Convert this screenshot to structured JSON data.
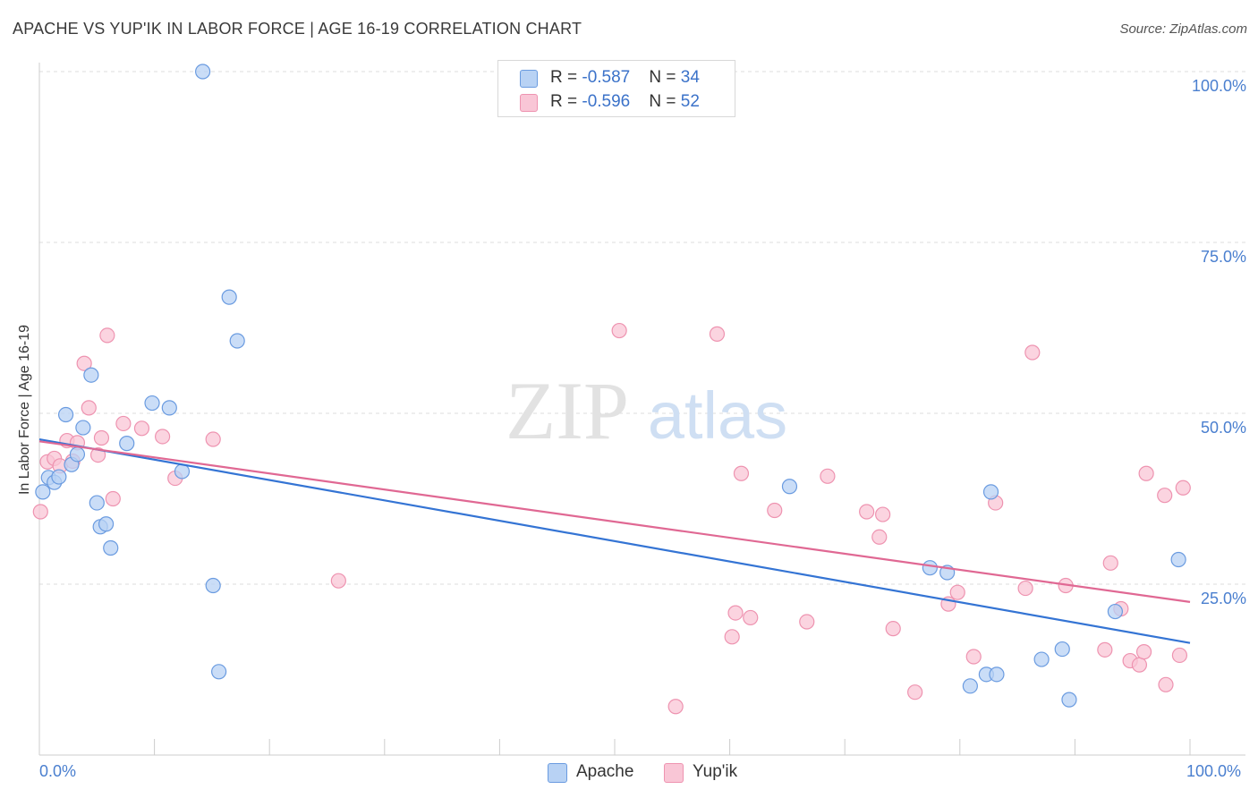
{
  "header": {
    "title": "APACHE VS YUP'IK IN LABOR FORCE | AGE 16-19 CORRELATION CHART",
    "source": "Source: ZipAtlas.com"
  },
  "watermark": {
    "zip": "ZIP",
    "atlas": "atlas"
  },
  "legend": {
    "apache": {
      "r_label": "R = ",
      "r_value": "-0.587",
      "n_label": "N = ",
      "n_value": "34"
    },
    "yupik": {
      "r_label": "R = ",
      "r_value": "-0.596",
      "n_label": "N = ",
      "n_value": "52"
    }
  },
  "colors": {
    "apache_fill": "#b8d2f4",
    "apache_stroke": "#6a9be0",
    "apache_line": "#3474d4",
    "yupik_fill": "#f9c6d6",
    "yupik_stroke": "#ee93b0",
    "yupik_line": "#e06893",
    "tick_text": "#4a7fcf",
    "grid": "#dddddd"
  },
  "chart_data": {
    "type": "scatter",
    "title": "APACHE VS YUP'IK IN LABOR FORCE | AGE 16-19 CORRELATION CHART",
    "xlabel": "",
    "ylabel": "In Labor Force | Age 16-19",
    "xlim": [
      0,
      100
    ],
    "ylim": [
      0,
      100
    ],
    "x_tick_labels": [
      "0.0%",
      "100.0%"
    ],
    "y_tick_labels": [
      "100.0%",
      "75.0%",
      "50.0%",
      "25.0%"
    ],
    "y_ticks": [
      100,
      75,
      50,
      25
    ],
    "grid": true,
    "legend_position": "top-center",
    "series": [
      {
        "name": "Apache",
        "r": -0.587,
        "n": 34,
        "trend": {
          "x": [
            0,
            100
          ],
          "y": [
            46.2,
            16.4
          ]
        },
        "points": [
          [
            0.3,
            38.5
          ],
          [
            0.8,
            40.6
          ],
          [
            1.3,
            39.9
          ],
          [
            1.7,
            40.7
          ],
          [
            2.3,
            49.8
          ],
          [
            2.8,
            42.5
          ],
          [
            3.3,
            44.0
          ],
          [
            3.8,
            47.9
          ],
          [
            4.5,
            55.6
          ],
          [
            5.0,
            36.9
          ],
          [
            5.3,
            33.4
          ],
          [
            5.8,
            33.8
          ],
          [
            6.2,
            30.3
          ],
          [
            7.6,
            45.6
          ],
          [
            9.8,
            51.5
          ],
          [
            11.3,
            50.8
          ],
          [
            12.4,
            41.5
          ],
          [
            14.2,
            100.0
          ],
          [
            15.1,
            24.8
          ],
          [
            15.6,
            12.2
          ],
          [
            16.5,
            67.0
          ],
          [
            17.2,
            60.6
          ],
          [
            65.2,
            39.3
          ],
          [
            77.4,
            27.4
          ],
          [
            78.9,
            26.7
          ],
          [
            80.9,
            10.1
          ],
          [
            82.3,
            11.8
          ],
          [
            83.2,
            11.8
          ],
          [
            82.7,
            38.5
          ],
          [
            87.1,
            14.0
          ],
          [
            88.9,
            15.5
          ],
          [
            89.5,
            8.1
          ],
          [
            93.5,
            21.0
          ],
          [
            99.0,
            28.6
          ]
        ]
      },
      {
        "name": "Yup'ik",
        "r": -0.596,
        "n": 52,
        "trend": {
          "x": [
            0,
            100
          ],
          "y": [
            45.9,
            22.4
          ]
        },
        "points": [
          [
            0.1,
            35.6
          ],
          [
            0.7,
            42.9
          ],
          [
            1.3,
            43.4
          ],
          [
            1.8,
            42.3
          ],
          [
            2.4,
            46.0
          ],
          [
            2.9,
            43.0
          ],
          [
            3.3,
            45.7
          ],
          [
            3.9,
            57.3
          ],
          [
            4.3,
            50.8
          ],
          [
            5.1,
            43.9
          ],
          [
            5.4,
            46.4
          ],
          [
            5.9,
            61.4
          ],
          [
            6.4,
            37.5
          ],
          [
            7.3,
            48.5
          ],
          [
            8.9,
            47.8
          ],
          [
            10.7,
            46.6
          ],
          [
            11.8,
            40.5
          ],
          [
            15.1,
            46.2
          ],
          [
            26.0,
            25.5
          ],
          [
            50.4,
            62.1
          ],
          [
            55.3,
            7.1
          ],
          [
            58.9,
            61.6
          ],
          [
            60.2,
            17.3
          ],
          [
            60.5,
            20.8
          ],
          [
            61.0,
            41.2
          ],
          [
            61.8,
            20.1
          ],
          [
            63.9,
            35.8
          ],
          [
            66.7,
            19.5
          ],
          [
            68.5,
            40.8
          ],
          [
            71.9,
            35.6
          ],
          [
            73.0,
            31.9
          ],
          [
            73.3,
            35.2
          ],
          [
            74.2,
            18.5
          ],
          [
            76.1,
            9.2
          ],
          [
            79.0,
            22.1
          ],
          [
            79.8,
            23.8
          ],
          [
            81.2,
            14.4
          ],
          [
            83.1,
            36.9
          ],
          [
            85.7,
            24.4
          ],
          [
            86.3,
            58.9
          ],
          [
            89.2,
            24.8
          ],
          [
            92.6,
            15.4
          ],
          [
            93.1,
            28.1
          ],
          [
            94.0,
            21.4
          ],
          [
            94.8,
            13.8
          ],
          [
            95.6,
            13.2
          ],
          [
            96.0,
            15.1
          ],
          [
            96.2,
            41.2
          ],
          [
            97.8,
            38.0
          ],
          [
            97.9,
            10.3
          ],
          [
            99.1,
            14.6
          ],
          [
            99.4,
            39.1
          ]
        ]
      }
    ]
  }
}
